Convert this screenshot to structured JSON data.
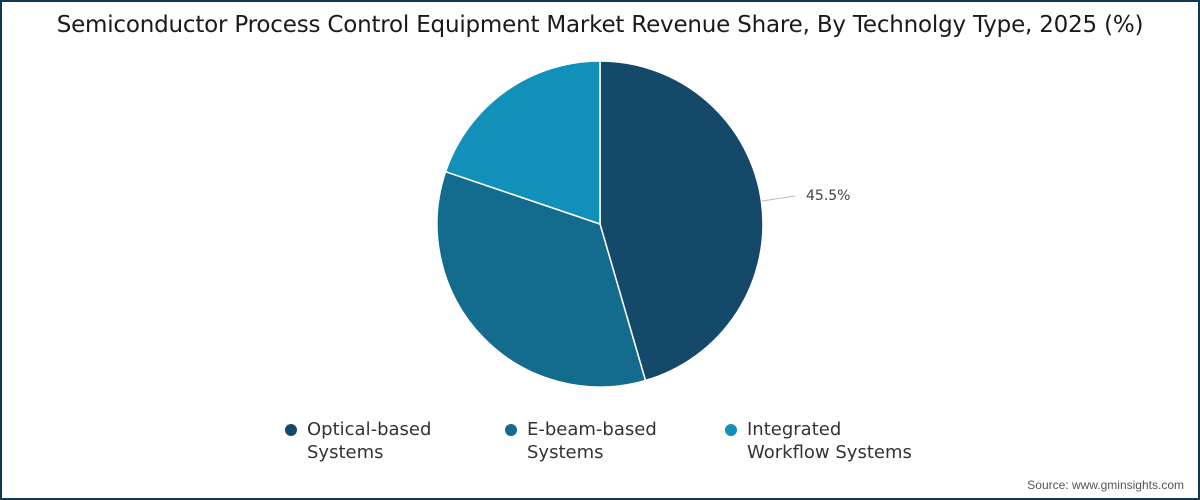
{
  "title": "Semiconductor Process Control Equipment Market Revenue Share, By Technolgy Type, 2025 (%)",
  "source": "Source: www.gminsights.com",
  "data_label": "45.5%",
  "legend": [
    {
      "label": "Optical-based\nSystems",
      "color": "#15496a"
    },
    {
      "label": "E-beam-based\nSystems",
      "color": "#136b8d"
    },
    {
      "label": "Integrated\nWorkflow Systems",
      "color": "#1190ba"
    }
  ],
  "chart_data": {
    "type": "pie",
    "title": "Semiconductor Process Control Equipment Market Revenue Share, By Technolgy Type, 2025 (%)",
    "categories": [
      "Optical-based Systems",
      "E-beam-based Systems",
      "Integrated Workflow Systems"
    ],
    "values": [
      45.5,
      34.7,
      19.8
    ],
    "colors": [
      "#15496a",
      "#136b8d",
      "#1190ba"
    ],
    "labels_shown": {
      "Optical-based Systems": "45.5%"
    },
    "start_angle": "12 o'clock, clockwise",
    "legend_position": "bottom",
    "source": "www.gminsights.com"
  }
}
